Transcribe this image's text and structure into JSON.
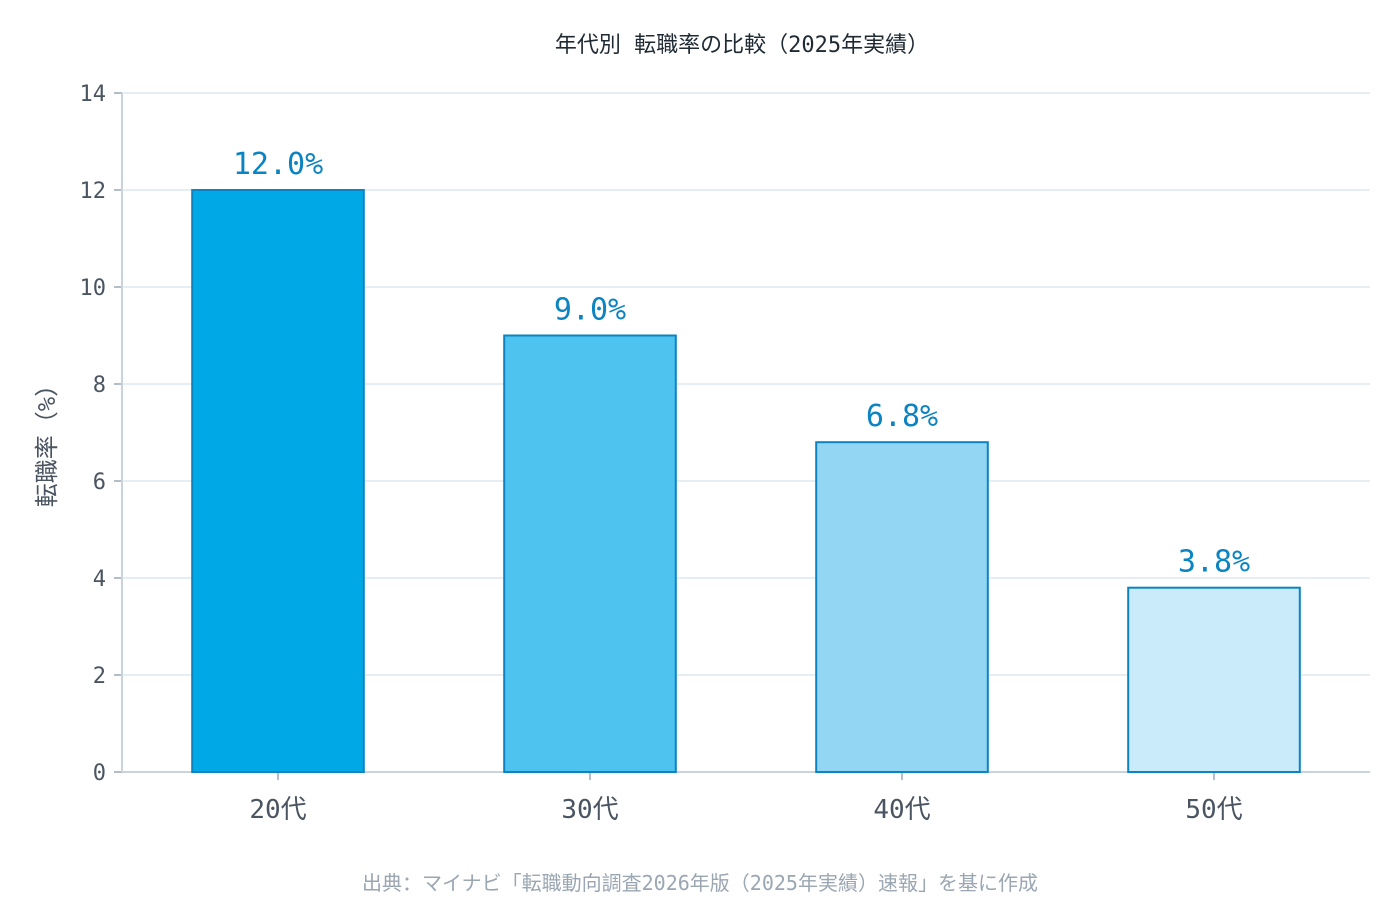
{
  "chart_data": {
    "type": "bar",
    "title": "年代別 転職率の比較（2025年実績）",
    "categories": [
      "20代",
      "30代",
      "40代",
      "50代"
    ],
    "values": [
      12.0,
      9.0,
      6.8,
      3.8
    ],
    "data_labels": [
      "12.0%",
      "9.0%",
      "6.8%",
      "3.8%"
    ],
    "ylabel": "転職率（%）",
    "xlabel": "",
    "ylim": [
      0,
      14
    ],
    "yticks": [
      0,
      2,
      4,
      6,
      8,
      10,
      12,
      14
    ],
    "grid": "horizontal",
    "bar_colors": [
      "#00a9e6",
      "#4fc3ef",
      "#92d6f3",
      "#c9ebfa"
    ],
    "bar_edge_color": "#0b84c1",
    "label_color": "#0b84c1",
    "source": "出典：マイナビ「転職動向調査2026年版（2025年実績）速報」を基に作成"
  }
}
